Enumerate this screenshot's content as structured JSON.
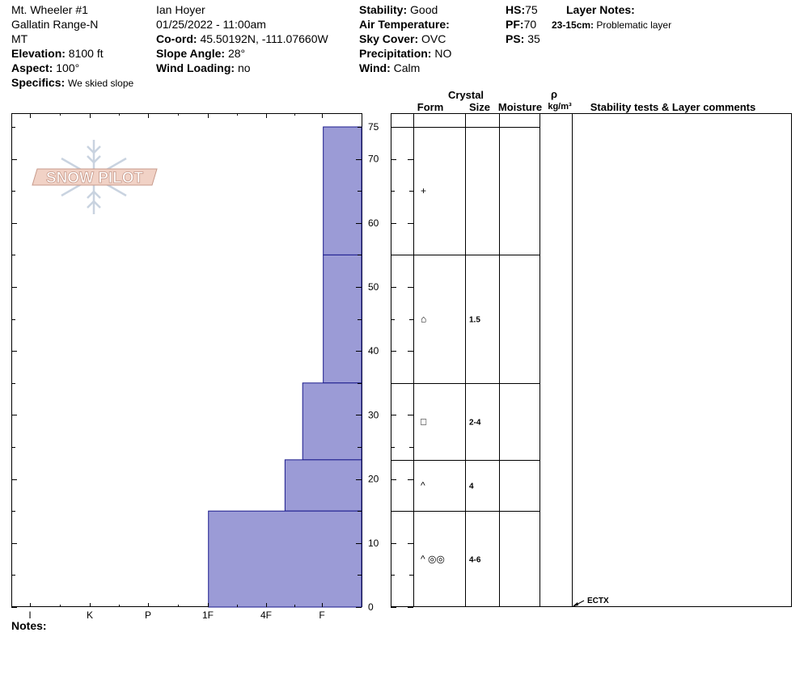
{
  "header": {
    "site_name": "Mt. Wheeler #1",
    "range": "Gallatin Range-N",
    "state": "MT",
    "elevation_label": "Elevation:",
    "elevation": "8100 ft",
    "aspect_label": "Aspect:",
    "aspect": "100°",
    "specifics_label": "Specifics:",
    "specifics": "We skied slope",
    "observer": "Ian Hoyer",
    "datetime": "01/25/2022 - 11:00am",
    "coord_label": "Co-ord:",
    "coord": "45.50192N, -111.07660W",
    "slope_label": "Slope Angle:",
    "slope": "28°",
    "wind_loading_label": "Wind Loading:",
    "wind_loading": "no",
    "stability_label": "Stability:",
    "stability": "Good",
    "air_temp_label": "Air Temperature:",
    "sky_label": "Sky Cover:",
    "sky": "OVC",
    "precip_label": "Precipitation:",
    "precip": "NO",
    "wind_label": "Wind:",
    "wind": "Calm",
    "hs_label": "HS:",
    "hs": "75",
    "pf_label": "PF:",
    "pf": "70",
    "ps_label": "PS:",
    "ps": "35",
    "layer_notes_label": "Layer Notes:",
    "layer_note_range": "23-15cm:",
    "layer_note_text": "Problematic layer"
  },
  "logo_text": "SNOW PILOT",
  "notes_label": "Notes:",
  "table_headers": {
    "crystal": "Crystal",
    "form": "Form",
    "size": "Size",
    "moisture": "Moisture",
    "rho": "ρ",
    "density_unit": "kg/m³",
    "stability": "Stability tests & Layer comments"
  },
  "colors": {
    "layer_fill": "#9b9bd6",
    "layer_stroke": "#1a1a8c"
  },
  "chart_data": {
    "type": "bar",
    "orientation": "horizontal",
    "title": "",
    "ylabel": "",
    "xlabel": "",
    "ylim": [
      0,
      75
    ],
    "y_ticks": [
      0,
      10,
      20,
      30,
      40,
      50,
      60,
      70,
      75
    ],
    "hardness_scale": [
      "I",
      "K",
      "P",
      "1F",
      "4F",
      "F"
    ],
    "layers": [
      {
        "top": 75,
        "bottom": 55,
        "hardness": "F",
        "hardness_index": 0.65,
        "form": "+",
        "size": ""
      },
      {
        "top": 55,
        "bottom": 35,
        "hardness": "F",
        "hardness_index": 0.65,
        "form": "⌂",
        "size": "1.5"
      },
      {
        "top": 35,
        "bottom": 23,
        "hardness": "F+",
        "hardness_index": 1.0,
        "form": "□",
        "size": "2-4"
      },
      {
        "top": 23,
        "bottom": 15,
        "hardness": "4F-",
        "hardness_index": 1.3,
        "form": "^",
        "size": "4"
      },
      {
        "top": 15,
        "bottom": 0,
        "hardness": "1F",
        "hardness_index": 2.6,
        "form": "^ ◎◎",
        "size": "4-6"
      }
    ],
    "stability_tests": [
      {
        "depth": 0,
        "label": "ECTX"
      }
    ]
  }
}
